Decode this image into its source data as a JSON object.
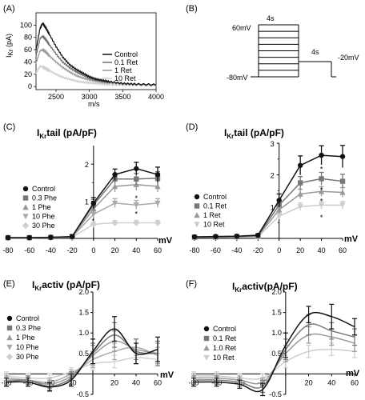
{
  "panels": {
    "A": {
      "letter": "(A)",
      "ylabel_main": "I",
      "ylabel_sub": "Kr",
      "ylabel_unit": " (pA)",
      "xlabel": "m/s",
      "yticks": [
        "0",
        "20",
        "40",
        "60",
        "80",
        "100"
      ],
      "xticks": [
        "2500",
        "3000",
        "3500",
        "4000"
      ],
      "legend": [
        "Control",
        "0.1 Ret",
        "1 Ret",
        "10 Ret"
      ]
    },
    "B": {
      "letter": "(B)",
      "label_4s_top": "4s",
      "label_60": "60mV",
      "label_4s_mid": "4s",
      "label_m20": "-20mV",
      "label_m80": "-80mV"
    },
    "C": {
      "letter": "(C)",
      "title_main": "I",
      "title_sub": "Kr",
      "title_rest": "tail (pA/pF)",
      "xunit": "mV"
    },
    "D": {
      "letter": "(D)",
      "title_main": "I",
      "title_sub": "Kr",
      "title_rest": "tail (pA/pF)",
      "xunit": "mV"
    },
    "E": {
      "letter": "(E)",
      "title_main": "I",
      "title_sub": "Kr",
      "title_rest": "activ (pA/pF)",
      "xunit": "mV"
    },
    "F": {
      "letter": "(F)",
      "title_main": "I",
      "title_sub": "Kr",
      "title_rest": "activ(pA/pF)",
      "xunit": "mV"
    }
  },
  "chart_data": [
    {
      "panel": "A",
      "type": "line",
      "title": "",
      "xlabel": "m/s",
      "ylabel": "IKr (pA)",
      "xlim": [
        2200,
        4000
      ],
      "ylim": [
        -5,
        120
      ],
      "series": [
        {
          "name": "Control",
          "color": "#111111",
          "x": [
            2200,
            2260,
            2300,
            2350,
            2400,
            2500,
            2600,
            2700,
            2800,
            2900,
            3000,
            3100,
            3200,
            3300,
            3500,
            3700,
            4000
          ],
          "values": [
            60,
            95,
            103,
            95,
            85,
            65,
            48,
            36,
            28,
            22,
            16,
            12,
            10,
            8,
            5,
            4,
            3
          ]
        },
        {
          "name": "0.1 Ret",
          "color": "#6e6e6e",
          "x": [
            2200,
            2260,
            2300,
            2350,
            2400,
            2500,
            2600,
            2700,
            2800,
            2900,
            3000,
            3100,
            3200,
            3300,
            3500,
            3700,
            4000
          ],
          "values": [
            50,
            78,
            82,
            76,
            68,
            53,
            40,
            31,
            24,
            19,
            14,
            11,
            9,
            7,
            5,
            4,
            3
          ]
        },
        {
          "name": "1 Ret",
          "color": "#9a9a9a",
          "x": [
            2200,
            2260,
            2300,
            2350,
            2400,
            2500,
            2600,
            2700,
            2800,
            2900,
            3000,
            3100,
            3200,
            3300,
            3500,
            3700,
            4000
          ],
          "values": [
            38,
            58,
            60,
            56,
            50,
            40,
            31,
            24,
            18,
            14,
            11,
            9,
            7,
            6,
            4,
            3,
            2
          ]
        },
        {
          "name": "10 Ret",
          "color": "#cfcfcf",
          "x": [
            2200,
            2260,
            2300,
            2350,
            2400,
            2500,
            2600,
            2700,
            2800,
            2900,
            3000,
            3100,
            3200,
            3300,
            3500,
            3700,
            4000
          ],
          "values": [
            22,
            33,
            32,
            29,
            26,
            20,
            15,
            12,
            9,
            7,
            6,
            5,
            4,
            3,
            2,
            2,
            1
          ]
        }
      ]
    },
    {
      "panel": "B",
      "type": "diagram",
      "description_values": {
        "hold_mV": -80,
        "steps_top_mV": 60,
        "tail_mV": -20,
        "step_duration_s": 4,
        "tail_duration_s": 4,
        "n_steps": 8
      }
    },
    {
      "panel": "C",
      "type": "line",
      "title": "IKr tail (pA/pF)",
      "xlabel": "mV",
      "xlim": [
        -80,
        60
      ],
      "ylim": [
        0,
        2.5
      ],
      "xticks": [
        -80,
        -60,
        -40,
        -20,
        0,
        20,
        40,
        60
      ],
      "yticks": [
        0,
        1,
        2
      ],
      "x": [
        -80,
        -60,
        -40,
        -20,
        0,
        20,
        40,
        60
      ],
      "series": [
        {
          "name": "Control",
          "color": "#111111",
          "marker": "circle",
          "values": [
            0.02,
            0.02,
            0.03,
            0.05,
            0.95,
            1.72,
            1.88,
            1.72
          ],
          "err": [
            0.02,
            0.02,
            0.02,
            0.05,
            0.15,
            0.15,
            0.17,
            0.2
          ]
        },
        {
          "name": "0.3 Phe",
          "color": "#777777",
          "marker": "square",
          "values": [
            0.02,
            0.02,
            0.03,
            0.05,
            0.9,
            1.6,
            1.6,
            1.62
          ],
          "err": [
            0.02,
            0.02,
            0.02,
            0.05,
            0.15,
            0.12,
            0.15,
            0.18
          ]
        },
        {
          "name": "1 Phe",
          "color": "#999999",
          "marker": "triangle-up",
          "values": [
            0.02,
            0.02,
            0.03,
            0.04,
            0.8,
            1.4,
            1.45,
            1.4
          ],
          "err": [
            0.02,
            0.02,
            0.02,
            0.04,
            0.12,
            0.15,
            0.15,
            0.15
          ]
        },
        {
          "name": "10 Phe",
          "color": "#aaaaaa",
          "marker": "triangle-down",
          "values": [
            0.02,
            0.02,
            0.02,
            0.04,
            0.65,
            0.95,
            0.9,
            0.95
          ],
          "err": [
            0.02,
            0.02,
            0.02,
            0.04,
            0.1,
            0.12,
            0.12,
            0.12
          ]
        },
        {
          "name": "30 Phe",
          "color": "#d0d0d0",
          "marker": "diamond",
          "values": [
            0.01,
            0.01,
            0.02,
            0.03,
            0.38,
            0.42,
            0.42,
            0.42
          ],
          "err": [
            0.01,
            0.01,
            0.02,
            0.03,
            0.06,
            0.06,
            0.06,
            0.06
          ]
        }
      ],
      "annotations": [
        {
          "x": 40,
          "y": 1.1,
          "text": "*"
        },
        {
          "x": 40,
          "y": 0.68,
          "text": "*"
        }
      ]
    },
    {
      "panel": "D",
      "type": "line",
      "title": "IKr tail (pA/pF)",
      "xlabel": "mV",
      "xlim": [
        -80,
        60
      ],
      "ylim": [
        0,
        3
      ],
      "xticks": [
        -80,
        -60,
        -40,
        -20,
        0,
        20,
        40,
        60
      ],
      "yticks": [
        0,
        1,
        2,
        3
      ],
      "x": [
        -80,
        -60,
        -40,
        -20,
        0,
        20,
        40,
        60
      ],
      "series": [
        {
          "name": "Control",
          "color": "#111111",
          "marker": "circle",
          "values": [
            0.05,
            0.06,
            0.07,
            0.1,
            1.2,
            2.3,
            2.62,
            2.58
          ],
          "err": [
            0.02,
            0.02,
            0.02,
            0.04,
            0.2,
            0.3,
            0.3,
            0.35
          ]
        },
        {
          "name": "0.1 Ret",
          "color": "#777777",
          "marker": "square",
          "values": [
            0.04,
            0.05,
            0.06,
            0.08,
            1.05,
            1.75,
            1.88,
            1.8
          ],
          "err": [
            0.02,
            0.02,
            0.02,
            0.04,
            0.15,
            0.2,
            0.2,
            0.22
          ]
        },
        {
          "name": "1 Ret",
          "color": "#999999",
          "marker": "triangle-up",
          "values": [
            0.04,
            0.04,
            0.05,
            0.07,
            0.9,
            1.4,
            1.48,
            1.45
          ],
          "err": [
            0.02,
            0.02,
            0.02,
            0.04,
            0.12,
            0.15,
            0.15,
            0.15
          ]
        },
        {
          "name": "10 Ret",
          "color": "#cccccc",
          "marker": "triangle-down",
          "values": [
            0.03,
            0.03,
            0.04,
            0.05,
            0.7,
            1.0,
            1.05,
            1.05
          ],
          "err": [
            0.02,
            0.02,
            0.02,
            0.03,
            0.1,
            0.12,
            0.12,
            0.12
          ]
        }
      ],
      "annotations": [
        {
          "x": 40,
          "y": 2.2,
          "text": "*"
        },
        {
          "x": 40,
          "y": 1.55,
          "text": "*"
        },
        {
          "x": 40,
          "y": 1.2,
          "text": "*"
        },
        {
          "x": 40,
          "y": 0.68,
          "text": "*"
        }
      ]
    },
    {
      "panel": "E",
      "type": "line",
      "title": "IKr activ (pA/pF)",
      "xlabel": "mV",
      "xlim": [
        -80,
        60
      ],
      "ylim": [
        -0.5,
        2.0
      ],
      "xticks": [
        -80,
        -60,
        -40,
        -20,
        0,
        20,
        40,
        60
      ],
      "yticks": [
        -0.5,
        0.5,
        1.0,
        1.5,
        2.0
      ],
      "x": [
        -80,
        -60,
        -40,
        -20,
        0,
        20,
        40,
        60
      ],
      "series": [
        {
          "name": "Control",
          "color": "#111111",
          "marker": "circle",
          "values": [
            -0.2,
            -0.2,
            -0.32,
            -0.15,
            0.55,
            1.1,
            0.5,
            0.6
          ],
          "err": [
            0.1,
            0.1,
            0.1,
            0.15,
            0.3,
            0.3,
            0.25,
            0.3
          ]
        },
        {
          "name": "0.3 Phe",
          "color": "#777777",
          "marker": "square",
          "values": [
            -0.2,
            -0.15,
            -0.3,
            -0.1,
            0.5,
            0.95,
            0.55,
            0.5
          ],
          "err": [
            0.1,
            0.1,
            0.1,
            0.15,
            0.25,
            0.3,
            0.3,
            0.3
          ]
        },
        {
          "name": "1 Phe",
          "color": "#999999",
          "marker": "triangle-up",
          "values": [
            -0.15,
            -0.15,
            -0.25,
            -0.05,
            0.45,
            0.8,
            0.6,
            0.5
          ],
          "err": [
            0.1,
            0.1,
            0.1,
            0.1,
            0.25,
            0.25,
            0.25,
            0.25
          ]
        },
        {
          "name": "10 Phe",
          "color": "#aaaaaa",
          "marker": "triangle-down",
          "values": [
            -0.1,
            -0.15,
            -0.2,
            0.0,
            0.35,
            0.55,
            0.65,
            0.45
          ],
          "err": [
            0.1,
            0.1,
            0.1,
            0.1,
            0.2,
            0.2,
            0.2,
            0.2
          ]
        },
        {
          "name": "30 Phe",
          "color": "#d0d0d0",
          "marker": "diamond",
          "values": [
            -0.05,
            -0.1,
            -0.1,
            0.05,
            0.25,
            0.3,
            0.4,
            0.35
          ],
          "err": [
            0.1,
            0.1,
            0.1,
            0.1,
            0.15,
            0.15,
            0.15,
            0.15
          ]
        }
      ]
    },
    {
      "panel": "F",
      "type": "line",
      "title": "IKr activ (pA/pF)",
      "xlabel": "mV",
      "xlim": [
        -80,
        60
      ],
      "ylim": [
        -0.5,
        2.0
      ],
      "xticks": [
        -80,
        -60,
        -40,
        -20,
        0,
        20,
        40,
        60
      ],
      "yticks": [
        -0.5,
        0.5,
        1.0,
        1.5,
        2.0
      ],
      "x": [
        -80,
        -60,
        -40,
        -20,
        0,
        20,
        40,
        60
      ],
      "series": [
        {
          "name": "Control",
          "color": "#111111",
          "marker": "circle",
          "values": [
            -0.2,
            -0.2,
            -0.25,
            -0.38,
            0.7,
            1.45,
            1.4,
            1.15
          ],
          "err": [
            0.1,
            0.1,
            0.1,
            0.15,
            0.3,
            0.2,
            0.3,
            0.2
          ]
        },
        {
          "name": "0.1 Ret",
          "color": "#777777",
          "marker": "square",
          "values": [
            -0.15,
            -0.15,
            -0.2,
            -0.3,
            0.6,
            1.2,
            1.05,
            0.9
          ],
          "err": [
            0.1,
            0.1,
            0.1,
            0.15,
            0.25,
            0.25,
            0.2,
            0.2
          ]
        },
        {
          "name": "1.0 Ret",
          "color": "#999999",
          "marker": "triangle-up",
          "values": [
            -0.1,
            -0.1,
            -0.15,
            -0.2,
            0.5,
            0.95,
            0.9,
            0.75
          ],
          "err": [
            0.1,
            0.1,
            0.1,
            0.1,
            0.2,
            0.2,
            0.2,
            0.2
          ]
        },
        {
          "name": "10 Ret",
          "color": "#cccccc",
          "marker": "triangle-down",
          "values": [
            -0.05,
            -0.05,
            -0.1,
            -0.1,
            0.3,
            0.55,
            0.6,
            0.55
          ],
          "err": [
            0.1,
            0.1,
            0.1,
            0.1,
            0.15,
            0.15,
            0.15,
            0.15
          ]
        }
      ]
    }
  ]
}
